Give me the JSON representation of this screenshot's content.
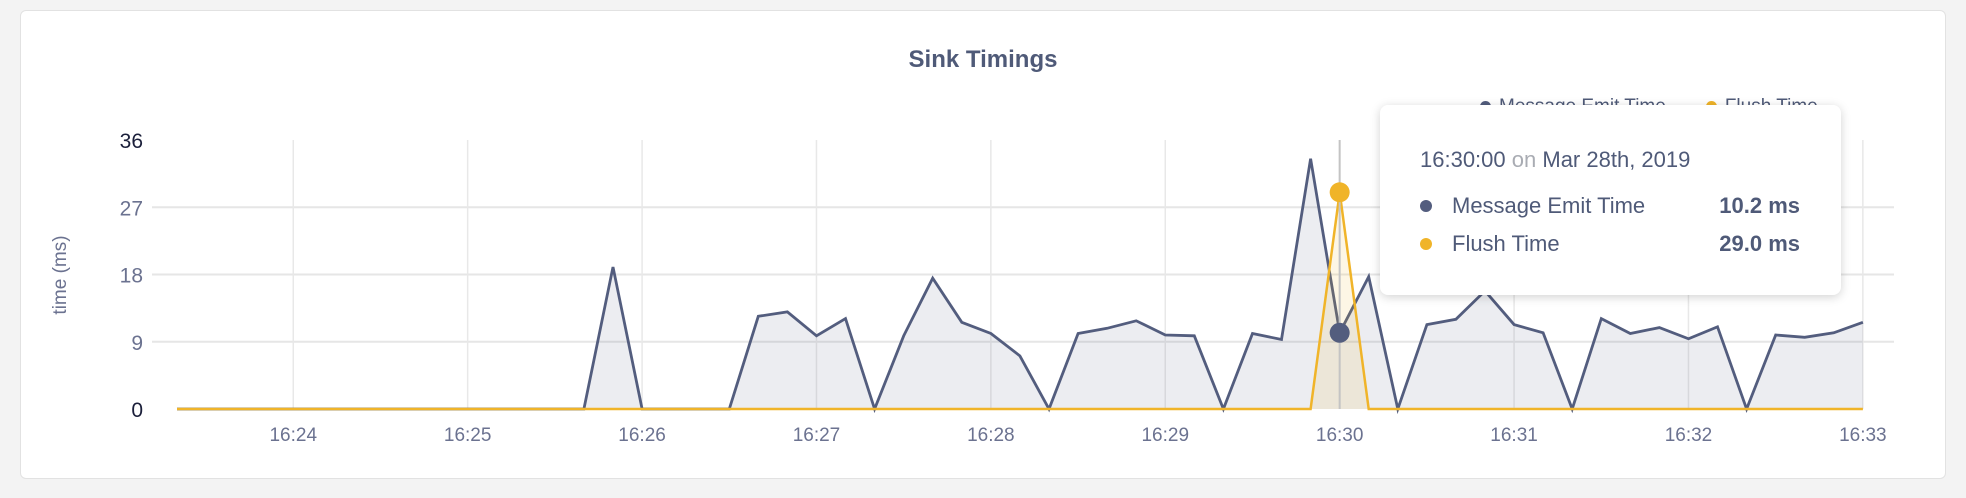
{
  "chart_data": {
    "type": "area",
    "title": "Sink Timings",
    "xlabel": "",
    "ylabel": "time (ms)",
    "ylim": [
      0,
      36
    ],
    "yticks": [
      "0",
      "9",
      "18",
      "27",
      "36"
    ],
    "xticks": [
      "16:24",
      "16:25",
      "16:26",
      "16:27",
      "16:28",
      "16:29",
      "16:30",
      "16:31",
      "16:32",
      "16:33"
    ],
    "x_start": "16:23:20",
    "x_end": "16:33:00",
    "x_step_seconds": 10,
    "grid": true,
    "legend_placement": "top-right",
    "series": [
      {
        "name": "Message Emit Time",
        "color": "#535d7e",
        "values": [
          0,
          0,
          0,
          0,
          0,
          0,
          0,
          0,
          0,
          0,
          0,
          0,
          0,
          0,
          0,
          19,
          0,
          0,
          0,
          0,
          12.4,
          13,
          9.8,
          12.1,
          0,
          9.8,
          17.5,
          11.6,
          10.1,
          7.1,
          0,
          10.1,
          10.8,
          11.8,
          9.9,
          9.8,
          0,
          10.1,
          9.3,
          33.5,
          10.2,
          17.7,
          0,
          11.3,
          12,
          15.8,
          11.3,
          10.2,
          0,
          12.1,
          10.1,
          10.9,
          9.4,
          11,
          0,
          9.9,
          9.6,
          10.2,
          11.6
        ]
      },
      {
        "name": "Flush Time",
        "color": "#f0b429",
        "values": [
          0,
          0,
          0,
          0,
          0,
          0,
          0,
          0,
          0,
          0,
          0,
          0,
          0,
          0,
          0,
          0,
          0,
          0,
          0,
          0,
          0,
          0,
          0,
          0,
          0,
          0,
          0,
          0,
          0,
          0,
          0,
          0,
          0,
          0,
          0,
          0,
          0,
          0,
          0,
          0,
          29.0,
          0,
          0,
          0,
          0,
          0,
          0,
          0,
          0,
          0,
          0,
          0,
          0,
          0,
          0,
          0,
          0,
          0,
          0
        ]
      }
    ]
  },
  "tooltip": {
    "time": "16:30:00",
    "on": "on",
    "date": "Mar 28th, 2019",
    "rows": [
      {
        "name": "Message Emit Time",
        "value": "10.2 ms",
        "color": "#535d7e"
      },
      {
        "name": "Flush Time",
        "value": "29.0 ms",
        "color": "#f0b429"
      }
    ]
  }
}
